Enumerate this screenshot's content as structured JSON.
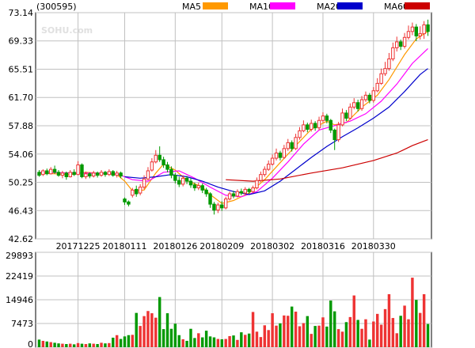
{
  "header": {
    "code": "(300595)",
    "ma_legend": [
      {
        "label": "MA5",
        "color": "#ff9900"
      },
      {
        "label": "MA10",
        "color": "#ff00ff"
      },
      {
        "label": "MA20",
        "color": "#0000cc"
      },
      {
        "label": "MA60",
        "color": "#cc0000"
      }
    ]
  },
  "watermark": "SOHU.com",
  "colors": {
    "up": "#ee3333",
    "down": "#009900",
    "grid": "#c0c0c0",
    "axis": "#000000"
  },
  "chart_data": [
    {
      "type": "candlestick",
      "y_ticks": [
        "73.14",
        "69.33",
        "65.51",
        "61.70",
        "57.88",
        "54.06",
        "50.25",
        "46.43",
        "42.62"
      ],
      "ylim": [
        42.62,
        73.14
      ],
      "x_tick_labels": [
        "20171225",
        "20180111",
        "20180126",
        "20180209",
        "20180302",
        "20180316",
        "20180330"
      ],
      "x_tick_at_bar": [
        10,
        22,
        35,
        47,
        60,
        73,
        86
      ],
      "bar_count": 101,
      "grid": true,
      "candles": [
        [
          51.6,
          51.2,
          51.9,
          51.0
        ],
        [
          51.3,
          51.8,
          52.0,
          51.1
        ],
        [
          51.8,
          51.4,
          52.1,
          51.2
        ],
        [
          51.4,
          52.0,
          52.3,
          51.3
        ],
        [
          52.0,
          51.6,
          52.5,
          51.4
        ],
        [
          51.6,
          51.2,
          51.9,
          51.0
        ],
        [
          51.2,
          51.5,
          51.8,
          50.8
        ],
        [
          51.5,
          51.0,
          51.7,
          50.6
        ],
        [
          51.0,
          51.6,
          51.9,
          50.9
        ],
        [
          51.6,
          51.3,
          52.0,
          51.1
        ],
        [
          51.3,
          52.6,
          53.1,
          51.2
        ],
        [
          52.6,
          51.0,
          52.8,
          50.8
        ],
        [
          51.0,
          51.4,
          51.7,
          50.7
        ],
        [
          51.4,
          51.1,
          51.6,
          50.8
        ],
        [
          51.1,
          51.5,
          51.8,
          50.9
        ],
        [
          51.5,
          51.2,
          51.7,
          50.9
        ],
        [
          51.2,
          51.6,
          51.9,
          51.0
        ],
        [
          51.6,
          51.3,
          51.8,
          51.0
        ],
        [
          51.3,
          51.7,
          52.0,
          51.1
        ],
        [
          51.7,
          51.2,
          51.9,
          51.0
        ],
        [
          51.2,
          51.5,
          51.8,
          50.9
        ],
        [
          51.5,
          51.1,
          51.7,
          50.8
        ],
        [
          48.0,
          47.6,
          48.2,
          47.2
        ],
        [
          47.6,
          47.3,
          47.8,
          47.0
        ],
        [
          48.5,
          49.2,
          49.5,
          48.2
        ],
        [
          49.3,
          48.7,
          49.8,
          48.3
        ],
        [
          48.8,
          49.6,
          50.0,
          48.5
        ],
        [
          49.6,
          50.7,
          51.2,
          49.3
        ],
        [
          50.7,
          51.8,
          52.3,
          50.5
        ],
        [
          51.9,
          53.0,
          53.5,
          51.7
        ],
        [
          53.0,
          53.9,
          54.6,
          52.8
        ],
        [
          53.9,
          53.3,
          55.1,
          53.0
        ],
        [
          53.3,
          52.6,
          53.7,
          52.2
        ],
        [
          52.6,
          52.0,
          53.0,
          51.6
        ],
        [
          52.0,
          51.2,
          52.4,
          50.8
        ],
        [
          51.2,
          50.5,
          51.5,
          50.1
        ],
        [
          50.5,
          50.0,
          51.0,
          49.6
        ],
        [
          50.0,
          50.8,
          51.2,
          49.7
        ],
        [
          50.8,
          50.4,
          51.1,
          50.0
        ],
        [
          50.4,
          49.9,
          50.8,
          49.5
        ],
        [
          49.9,
          49.5,
          50.2,
          49.1
        ],
        [
          49.5,
          49.8,
          50.2,
          49.2
        ],
        [
          49.8,
          49.2,
          50.1,
          48.8
        ],
        [
          49.2,
          48.7,
          49.5,
          48.3
        ],
        [
          48.7,
          47.3,
          48.9,
          46.8
        ],
        [
          47.3,
          46.5,
          47.6,
          45.9
        ],
        [
          46.5,
          47.2,
          47.5,
          46.1
        ],
        [
          47.2,
          46.8,
          47.7,
          46.4
        ],
        [
          46.8,
          48.0,
          48.3,
          46.6
        ],
        [
          48.0,
          48.7,
          49.0,
          47.8
        ],
        [
          48.7,
          48.4,
          49.1,
          48.1
        ],
        [
          48.4,
          49.0,
          49.3,
          48.2
        ],
        [
          49.0,
          48.8,
          49.4,
          48.5
        ],
        [
          48.8,
          49.3,
          49.6,
          48.6
        ],
        [
          49.3,
          49.0,
          49.5,
          48.7
        ],
        [
          49.0,
          49.5,
          49.8,
          48.8
        ],
        [
          49.5,
          50.5,
          50.9,
          49.3
        ],
        [
          50.5,
          51.3,
          51.7,
          50.3
        ],
        [
          51.3,
          52.0,
          52.4,
          51.0
        ],
        [
          52.0,
          52.7,
          53.2,
          51.8
        ],
        [
          52.7,
          53.5,
          54.0,
          52.5
        ],
        [
          53.5,
          54.2,
          54.8,
          53.2
        ],
        [
          54.2,
          53.6,
          54.5,
          53.2
        ],
        [
          53.6,
          54.8,
          55.3,
          53.4
        ],
        [
          54.8,
          55.6,
          56.1,
          54.5
        ],
        [
          55.6,
          54.8,
          55.9,
          54.4
        ],
        [
          54.8,
          56.3,
          56.8,
          54.6
        ],
        [
          56.3,
          57.2,
          57.7,
          56.0
        ],
        [
          57.2,
          58.0,
          58.6,
          57.0
        ],
        [
          58.0,
          57.4,
          58.3,
          57.0
        ],
        [
          57.4,
          58.2,
          58.7,
          57.1
        ],
        [
          58.2,
          57.6,
          58.5,
          57.2
        ],
        [
          57.6,
          58.6,
          59.1,
          57.3
        ],
        [
          58.6,
          59.2,
          59.7,
          58.3
        ],
        [
          59.2,
          58.6,
          59.5,
          58.2
        ],
        [
          58.6,
          57.3,
          58.8,
          56.9
        ],
        [
          57.3,
          56.0,
          57.5,
          54.6
        ],
        [
          56.0,
          58.0,
          58.4,
          55.7
        ],
        [
          58.0,
          59.6,
          60.2,
          57.8
        ],
        [
          59.6,
          58.9,
          60.0,
          58.5
        ],
        [
          58.9,
          60.4,
          60.9,
          58.7
        ],
        [
          60.4,
          61.0,
          61.6,
          60.1
        ],
        [
          61.0,
          60.2,
          61.4,
          59.8
        ],
        [
          60.2,
          61.4,
          61.9,
          59.9
        ],
        [
          61.4,
          62.0,
          62.5,
          61.1
        ],
        [
          62.0,
          61.3,
          62.3,
          60.9
        ],
        [
          61.3,
          62.6,
          63.1,
          61.0
        ],
        [
          62.6,
          63.6,
          64.3,
          62.4
        ],
        [
          63.6,
          64.9,
          65.6,
          63.4
        ],
        [
          64.9,
          65.6,
          66.5,
          64.6
        ],
        [
          65.6,
          66.9,
          67.7,
          65.3
        ],
        [
          66.9,
          68.4,
          69.1,
          66.6
        ],
        [
          68.4,
          69.2,
          69.9,
          67.9
        ],
        [
          69.2,
          68.6,
          69.5,
          68.1
        ],
        [
          68.6,
          69.8,
          70.4,
          68.3
        ],
        [
          69.8,
          70.6,
          71.4,
          69.5
        ],
        [
          70.6,
          71.2,
          71.8,
          70.1
        ],
        [
          71.2,
          70.0,
          71.6,
          69.3
        ],
        [
          70.0,
          70.3,
          71.3,
          69.5
        ],
        [
          70.3,
          71.5,
          72.0,
          69.6
        ],
        [
          71.5,
          70.6,
          72.2,
          70.0
        ]
      ],
      "ma_lines": {
        "MA5": [
          [
            0,
            51.5
          ],
          [
            8,
            51.3
          ],
          [
            12,
            51.6
          ],
          [
            20,
            51.3
          ],
          [
            22,
            50.4
          ],
          [
            24,
            49.1
          ],
          [
            27,
            49.2
          ],
          [
            30,
            51.5
          ],
          [
            32,
            52.7
          ],
          [
            35,
            51.9
          ],
          [
            38,
            50.5
          ],
          [
            42,
            49.6
          ],
          [
            44,
            48.6
          ],
          [
            47,
            47.4
          ],
          [
            50,
            47.8
          ],
          [
            54,
            48.8
          ],
          [
            58,
            50.6
          ],
          [
            62,
            52.9
          ],
          [
            66,
            55.2
          ],
          [
            70,
            57.4
          ],
          [
            74,
            58.5
          ],
          [
            76,
            58.0
          ],
          [
            79,
            58.3
          ],
          [
            83,
            60.4
          ],
          [
            87,
            62.0
          ],
          [
            90,
            64.1
          ],
          [
            94,
            67.5
          ],
          [
            97,
            69.6
          ],
          [
            100,
            70.6
          ]
        ],
        "MA10": [
          [
            0,
            51.6
          ],
          [
            10,
            51.5
          ],
          [
            15,
            51.5
          ],
          [
            20,
            51.4
          ],
          [
            24,
            50.6
          ],
          [
            28,
            50.4
          ],
          [
            32,
            51.6
          ],
          [
            36,
            51.8
          ],
          [
            40,
            50.8
          ],
          [
            44,
            49.6
          ],
          [
            48,
            48.5
          ],
          [
            52,
            48.3
          ],
          [
            56,
            49.0
          ],
          [
            60,
            50.8
          ],
          [
            64,
            53.0
          ],
          [
            68,
            55.4
          ],
          [
            72,
            57.3
          ],
          [
            76,
            57.9
          ],
          [
            80,
            58.5
          ],
          [
            84,
            59.5
          ],
          [
            88,
            61.2
          ],
          [
            92,
            63.5
          ],
          [
            96,
            66.3
          ],
          [
            100,
            68.3
          ]
        ],
        "MA20": [
          [
            22,
            51.0
          ],
          [
            26,
            50.8
          ],
          [
            30,
            51.0
          ],
          [
            34,
            51.3
          ],
          [
            38,
            51.0
          ],
          [
            42,
            50.4
          ],
          [
            46,
            49.6
          ],
          [
            50,
            49.0
          ],
          [
            54,
            48.6
          ],
          [
            58,
            49.1
          ],
          [
            62,
            50.4
          ],
          [
            66,
            52.0
          ],
          [
            70,
            53.6
          ],
          [
            74,
            55.1
          ],
          [
            78,
            56.4
          ],
          [
            82,
            57.6
          ],
          [
            86,
            58.9
          ],
          [
            90,
            60.4
          ],
          [
            94,
            62.5
          ],
          [
            98,
            64.8
          ],
          [
            100,
            65.6
          ]
        ],
        "MA60": [
          [
            48,
            50.6
          ],
          [
            55,
            50.4
          ],
          [
            62,
            50.7
          ],
          [
            70,
            51.5
          ],
          [
            78,
            52.2
          ],
          [
            86,
            53.2
          ],
          [
            92,
            54.2
          ],
          [
            96,
            55.2
          ],
          [
            100,
            56.0
          ]
        ]
      }
    },
    {
      "type": "bar",
      "y_ticks": [
        "29893",
        "22419",
        "14946",
        "7473",
        "0"
      ],
      "ylim": [
        0,
        29893
      ],
      "grid": true,
      "volumes": [
        2400,
        2000,
        1800,
        1600,
        1400,
        1200,
        1100,
        1000,
        1100,
        900,
        1300,
        1100,
        1000,
        1200,
        1100,
        1000,
        1400,
        1200,
        1300,
        3000,
        3800,
        2600,
        3400,
        3800,
        3900,
        10800,
        6700,
        9800,
        11400,
        10700,
        9300,
        15800,
        5700,
        10700,
        5800,
        7400,
        3800,
        2500,
        2000,
        5800,
        2900,
        4400,
        3100,
        5200,
        3400,
        3100,
        2600,
        2500,
        2600,
        3500,
        3700,
        2300,
        4700,
        3900,
        4300,
        11100,
        4900,
        3200,
        6900,
        5400,
        10700,
        6800,
        7500,
        10000,
        9900,
        12800,
        11200,
        6600,
        7600,
        9800,
        4200,
        6700,
        6800,
        9400,
        6500,
        14700,
        11300,
        5700,
        4900,
        7900,
        9500,
        16300,
        8600,
        5800,
        8800,
        2400,
        8100,
        10500,
        7100,
        12000,
        16700,
        9200,
        4400,
        9900,
        13100,
        8800,
        21900,
        14900,
        10800,
        16700,
        7300
      ]
    }
  ]
}
